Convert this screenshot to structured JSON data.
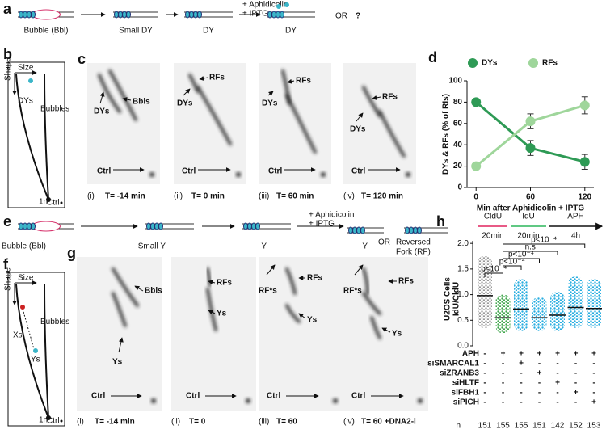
{
  "panels": {
    "a": {
      "label": "a",
      "steps": [
        "Bubble (Bbl)",
        "Small DY",
        "DY",
        "DY"
      ],
      "treatment": [
        "+ Aphidicolin",
        "+ IPTG"
      ],
      "or": "OR",
      "question": "?"
    },
    "b": {
      "label": "b",
      "shape": "Shape",
      "size": "Size",
      "dys": "DYs",
      "bubbles": "Bubbles",
      "one_n": "1n",
      "ctrl": "Ctrl"
    },
    "c": {
      "label": "c",
      "gels": [
        {
          "numeral": "(i)",
          "time": "T= -14 min",
          "labels": [
            "DYs",
            "Bbls",
            "Ctrl"
          ]
        },
        {
          "numeral": "(ii)",
          "time": "T= 0 min",
          "labels": [
            "RFs",
            "DYs",
            "Ctrl"
          ]
        },
        {
          "numeral": "(iii)",
          "time": "T= 60 min",
          "labels": [
            "RFs",
            "DYs",
            "Ctrl"
          ]
        },
        {
          "numeral": "(iv)",
          "time": "T= 120 min",
          "labels": [
            "RFs",
            "DYs",
            "Ctrl"
          ]
        }
      ]
    },
    "e": {
      "label": "e",
      "steps": [
        "Bubble (Bbl)",
        "Small Y",
        "Y",
        "Y"
      ],
      "treatment": [
        "+ Aphidicolin",
        "+ IPTG"
      ],
      "or": "OR",
      "reversed": [
        "Reversed",
        "Fork (RF)"
      ]
    },
    "f": {
      "label": "f",
      "shape": "Shape",
      "size": "Size",
      "bubbles": "Bubbles",
      "xs": "Xs",
      "ys": "Ys",
      "one_n": "1n",
      "ctrl": "Ctrl"
    },
    "g": {
      "label": "g",
      "gels": [
        {
          "numeral": "(i)",
          "time": "T= -14 min",
          "labels": [
            "Bbls",
            "Ys",
            "Ctrl"
          ]
        },
        {
          "numeral": "(ii)",
          "time": "T= 0",
          "labels": [
            "RFs",
            "Ys",
            "Ctrl"
          ]
        },
        {
          "numeral": "(iii)",
          "time": "T= 60",
          "labels": [
            "RF*s",
            "RFs",
            "Ys",
            "Ctrl"
          ]
        },
        {
          "numeral": "(iv)",
          "time": "T= 60 +DNA2-i",
          "labels": [
            "RF*s",
            "RFs",
            "Ys",
            "Ctrl"
          ]
        }
      ]
    }
  },
  "chart_data": [
    {
      "type": "line",
      "label": "d",
      "x": [
        0,
        60,
        120
      ],
      "xlim": [
        -10,
        130
      ],
      "xticks": [
        0,
        60,
        120
      ],
      "ylim": [
        0,
        100
      ],
      "yticks": [
        0,
        20,
        40,
        60,
        80,
        100
      ],
      "xlabel": "Min after Aphidicolin + IPTG",
      "ylabel": "DYs & RFs (% of RIs)",
      "series": [
        {
          "name": "DYs",
          "color": "#2e9a55",
          "values": [
            80,
            37,
            24
          ],
          "errors": [
            0,
            7,
            7
          ]
        },
        {
          "name": "RFs",
          "color": "#9fd69b",
          "values": [
            20,
            62,
            77
          ],
          "errors": [
            0,
            7,
            8
          ]
        }
      ]
    },
    {
      "type": "dotplot",
      "label": "h",
      "timeline": {
        "steps": [
          "CldU",
          "IdU",
          "APH"
        ],
        "durations": [
          "20min",
          "20min",
          "4h"
        ]
      },
      "ylabel": [
        "U2OS Cells",
        "IdU/CldU"
      ],
      "ylim": [
        0,
        2.05
      ],
      "yticks": [
        {
          "value": 0,
          "label": "0.0"
        },
        {
          "value": 0.5,
          "label": "0.5"
        },
        {
          "value": 1,
          "label": "1.0"
        },
        {
          "value": 1.5,
          "label": "1.5"
        },
        {
          "value": 2,
          "label": "2.0"
        }
      ],
      "medians": [
        0.98,
        0.55,
        0.72,
        0.55,
        0.6,
        0.75,
        0.73
      ],
      "ranges": [
        [
          0.35,
          1.75
        ],
        [
          0.25,
          1.0
        ],
        [
          0.3,
          1.3
        ],
        [
          0.3,
          0.95
        ],
        [
          0.3,
          1.05
        ],
        [
          0.35,
          1.35
        ],
        [
          0.35,
          1.3
        ]
      ],
      "colors": [
        "#9a9a9a",
        "#43a84f",
        "#2aaee0",
        "#2aaee0",
        "#2aaee0",
        "#2aaee0",
        "#2aaee0"
      ],
      "conditions": [
        {
          "name": "APH",
          "signs": [
            "-",
            "+",
            "+",
            "+",
            "+",
            "+",
            "+"
          ]
        },
        {
          "name": "siSMARCAL1",
          "signs": [
            "-",
            "-",
            "+",
            "-",
            "-",
            "-",
            "-"
          ]
        },
        {
          "name": "siZRANB3",
          "signs": [
            "-",
            "-",
            "-",
            "+",
            "-",
            "-",
            "-"
          ]
        },
        {
          "name": "siHLTF",
          "signs": [
            "-",
            "-",
            "-",
            "-",
            "+",
            "-",
            "-"
          ]
        },
        {
          "name": "siFBH1",
          "signs": [
            "-",
            "-",
            "-",
            "-",
            "-",
            "+",
            "-"
          ]
        },
        {
          "name": "siPICH",
          "signs": [
            "-",
            "-",
            "-",
            "-",
            "-",
            "-",
            "+"
          ]
        }
      ],
      "n_label": "n",
      "n": [
        151,
        155,
        155,
        151,
        142,
        152,
        153
      ],
      "pvalues": [
        "p<10⁻⁴",
        "p<10⁻⁴",
        "p<10⁻⁴",
        "n.s",
        "p<10⁻⁴"
      ]
    }
  ]
}
